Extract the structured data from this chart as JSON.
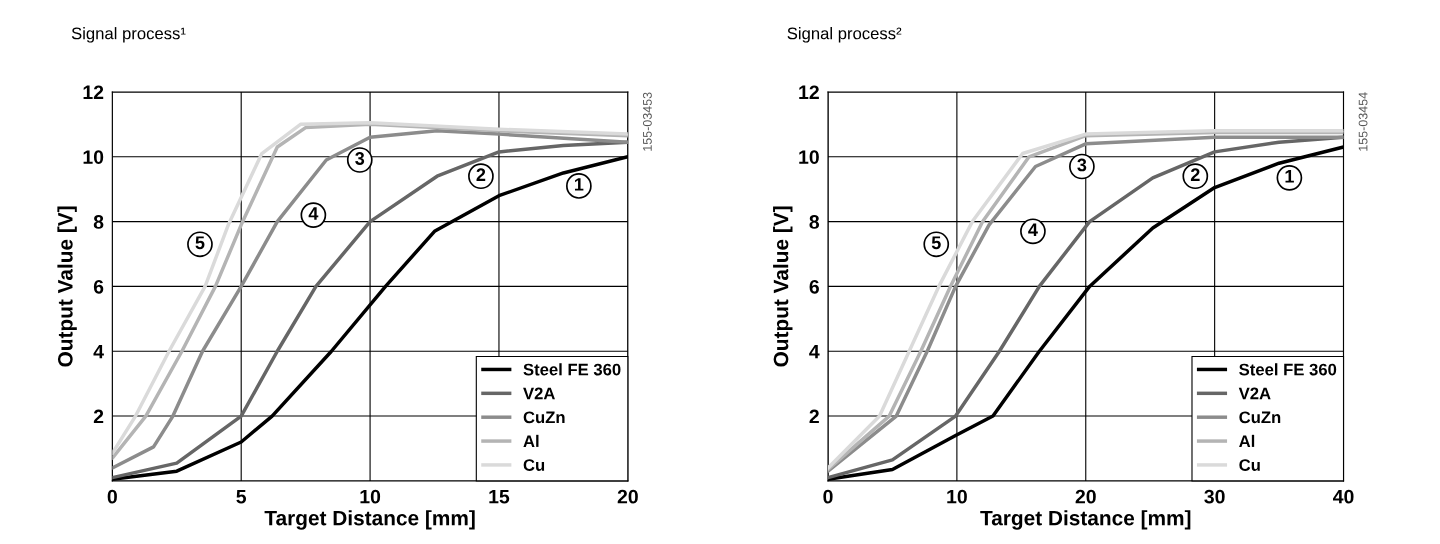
{
  "chart_data": [
    {
      "type": "line",
      "title": "Signal process¹",
      "xlabel": "Target Distance [mm]",
      "ylabel": "Output Value [V]",
      "xlim": [
        0,
        20
      ],
      "xticks": [
        0,
        5,
        10,
        15,
        20
      ],
      "ylim": [
        0,
        12
      ],
      "yticks": [
        2,
        4,
        6,
        8,
        10,
        12
      ],
      "grid": true,
      "legend": "bottom right",
      "marker": "none",
      "line_style": "solid",
      "series": [
        {
          "name": "Steel FE 360",
          "color": "#000000",
          "x": [
            0,
            2.5,
            5,
            6.2,
            8.5,
            10.6,
            12.5,
            15,
            17.5,
            20
          ],
          "values": [
            0.05,
            0.3,
            1.2,
            2,
            4,
            6,
            7.7,
            8.8,
            9.5,
            10.0
          ]
        },
        {
          "name": "V2A",
          "color": "#666666",
          "x": [
            0,
            2.5,
            5,
            6.4,
            7.9,
            10,
            12.6,
            15,
            17.5,
            20
          ],
          "values": [
            0.1,
            0.55,
            2,
            4,
            6,
            8,
            9.4,
            10.15,
            10.35,
            10.45
          ]
        },
        {
          "name": "CuZn",
          "color": "#8c8c8c",
          "x": [
            0,
            1.6,
            2.35,
            3.5,
            5,
            6.4,
            8.3,
            10,
            12.6,
            15,
            20
          ],
          "values": [
            0.4,
            1.05,
            2,
            4,
            6,
            8,
            9.9,
            10.6,
            10.8,
            10.7,
            10.45
          ]
        },
        {
          "name": "Al",
          "color": "#b4b4b4",
          "x": [
            0,
            1.3,
            2.7,
            4.0,
            5,
            6.4,
            7.5,
            10,
            15,
            20
          ],
          "values": [
            0.7,
            2,
            4,
            6,
            7.9,
            10.3,
            10.9,
            11.0,
            10.8,
            10.65
          ]
        },
        {
          "name": "Cu",
          "color": "#dadada",
          "x": [
            0,
            0.9,
            2.2,
            3.6,
            4.5,
            5.8,
            7.3,
            10,
            15,
            20
          ],
          "values": [
            0.85,
            2,
            4,
            6,
            7.9,
            10.1,
            11.0,
            11.05,
            10.85,
            10.7
          ]
        }
      ],
      "annotations": [
        {
          "text": "1",
          "x": 18.1,
          "y": 9.1
        },
        {
          "text": "2",
          "x": 14.3,
          "y": 9.4
        },
        {
          "text": "3",
          "x": 9.6,
          "y": 9.9
        },
        {
          "text": "4",
          "x": 7.8,
          "y": 8.2
        },
        {
          "text": "5",
          "x": 3.4,
          "y": 7.3
        },
        "155-03453"
      ]
    },
    {
      "type": "line",
      "title": "Signal process²",
      "xlabel": "Target Distance [mm]",
      "ylabel": "Output Value [V]",
      "xlim": [
        0,
        40
      ],
      "xticks": [
        0,
        10,
        20,
        30,
        40
      ],
      "ylim": [
        0,
        12
      ],
      "yticks": [
        2,
        4,
        6,
        8,
        10,
        12
      ],
      "grid": true,
      "legend": "bottom right",
      "marker": "none",
      "line_style": "solid",
      "series": [
        {
          "name": "Steel FE 360",
          "color": "#000000",
          "x": [
            0,
            5,
            9.9,
            12.8,
            16.4,
            20.3,
            25.2,
            30,
            35,
            40
          ],
          "values": [
            0.05,
            0.35,
            1.4,
            2,
            4,
            6,
            7.8,
            9.05,
            9.8,
            10.3
          ]
        },
        {
          "name": "V2A",
          "color": "#666666",
          "x": [
            0,
            5,
            9.9,
            13.3,
            16.4,
            20.3,
            25.2,
            30,
            35,
            40
          ],
          "values": [
            0.1,
            0.65,
            2,
            4,
            6,
            8,
            9.35,
            10.15,
            10.45,
            10.6
          ]
        },
        {
          "name": "CuZn",
          "color": "#8c8c8c",
          "x": [
            0,
            5.3,
            7.7,
            9.9,
            12.5,
            16.1,
            20,
            30,
            40
          ],
          "values": [
            0.3,
            2,
            4,
            6,
            7.9,
            9.7,
            10.4,
            10.6,
            10.6
          ]
        },
        {
          "name": "Al",
          "color": "#b4b4b4",
          "x": [
            0,
            4.75,
            7.2,
            9.5,
            12,
            15.6,
            20,
            30,
            40
          ],
          "values": [
            0.35,
            2,
            4,
            6,
            8,
            10.0,
            10.65,
            10.75,
            10.75
          ]
        },
        {
          "name": "Cu",
          "color": "#dadada",
          "x": [
            0,
            4,
            6.3,
            8.6,
            11.2,
            15.1,
            20,
            30,
            40
          ],
          "values": [
            0.4,
            2,
            4,
            6,
            8,
            10.1,
            10.7,
            10.8,
            10.8
          ]
        }
      ],
      "annotations": [
        {
          "text": "1",
          "x": 35.8,
          "y": 9.35
        },
        {
          "text": "2",
          "x": 28.5,
          "y": 9.4
        },
        {
          "text": "3",
          "x": 19.7,
          "y": 9.7
        },
        {
          "text": "4",
          "x": 15.9,
          "y": 7.7
        },
        {
          "text": "5",
          "x": 8.4,
          "y": 7.3
        },
        "155-03454"
      ]
    }
  ]
}
